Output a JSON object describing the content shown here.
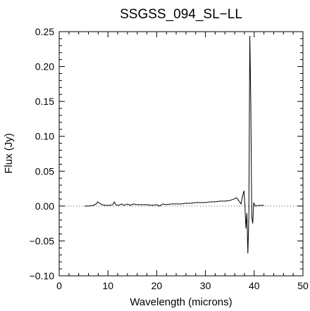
{
  "chart_data": {
    "type": "line",
    "title": "SSGSS_094_SL−LL",
    "xlabel": "Wavelength (microns)",
    "ylabel": "Flux (Jy)",
    "xlim": [
      0,
      50
    ],
    "ylim": [
      -0.1,
      0.25
    ],
    "x_ticks": [
      0,
      10,
      20,
      30,
      40,
      50
    ],
    "x_tick_labels": [
      "0",
      "10",
      "20",
      "30",
      "40",
      "50"
    ],
    "y_ticks": [
      -0.1,
      -0.05,
      0.0,
      0.05,
      0.1,
      0.15,
      0.2,
      0.25
    ],
    "y_tick_labels": [
      "−0.10",
      "−0.05",
      "0.00",
      "0.05",
      "0.10",
      "0.15",
      "0.20",
      "0.25"
    ],
    "grid": false,
    "reference_line": {
      "y": 0.0,
      "style": "dotted"
    },
    "series": [
      {
        "color": "#000000",
        "points": [
          [
            5.2,
            0.0
          ],
          [
            6.0,
            0.0
          ],
          [
            7.0,
            0.001
          ],
          [
            7.6,
            0.003
          ],
          [
            7.9,
            0.006
          ],
          [
            8.3,
            0.004
          ],
          [
            8.8,
            0.002
          ],
          [
            9.5,
            0.001
          ],
          [
            10.3,
            0.001
          ],
          [
            11.0,
            0.002
          ],
          [
            11.3,
            0.006
          ],
          [
            11.6,
            0.002
          ],
          [
            12.2,
            0.001
          ],
          [
            12.8,
            0.003
          ],
          [
            13.3,
            0.001
          ],
          [
            14.0,
            0.003
          ],
          [
            14.6,
            0.001
          ],
          [
            15.2,
            0.003
          ],
          [
            16.0,
            0.002
          ],
          [
            17.0,
            0.002
          ],
          [
            18.0,
            0.002
          ],
          [
            19.0,
            0.001
          ],
          [
            20.0,
            0.002
          ],
          [
            20.6,
            0.0
          ],
          [
            21.2,
            0.003
          ],
          [
            22.0,
            0.002
          ],
          [
            23.0,
            0.003
          ],
          [
            24.0,
            0.003
          ],
          [
            25.0,
            0.003
          ],
          [
            26.0,
            0.004
          ],
          [
            27.0,
            0.004
          ],
          [
            28.0,
            0.005
          ],
          [
            29.0,
            0.005
          ],
          [
            30.0,
            0.005
          ],
          [
            31.0,
            0.006
          ],
          [
            32.0,
            0.006
          ],
          [
            33.0,
            0.007
          ],
          [
            34.0,
            0.007
          ],
          [
            35.0,
            0.008
          ],
          [
            35.8,
            0.01
          ],
          [
            36.4,
            0.012
          ],
          [
            36.9,
            0.007
          ],
          [
            37.3,
            0.003
          ],
          [
            37.6,
            0.014
          ],
          [
            37.9,
            0.022
          ],
          [
            38.1,
            0.0
          ],
          [
            38.3,
            -0.032
          ],
          [
            38.5,
            -0.01
          ],
          [
            38.7,
            -0.068
          ],
          [
            38.9,
            -0.015
          ],
          [
            39.1,
            0.244
          ],
          [
            39.3,
            0.15
          ],
          [
            39.5,
            -0.015
          ],
          [
            39.7,
            -0.025
          ],
          [
            39.9,
            0.005
          ],
          [
            40.2,
            0.0
          ],
          [
            41.0,
            0.001
          ],
          [
            42.0,
            0.001
          ]
        ]
      }
    ]
  }
}
